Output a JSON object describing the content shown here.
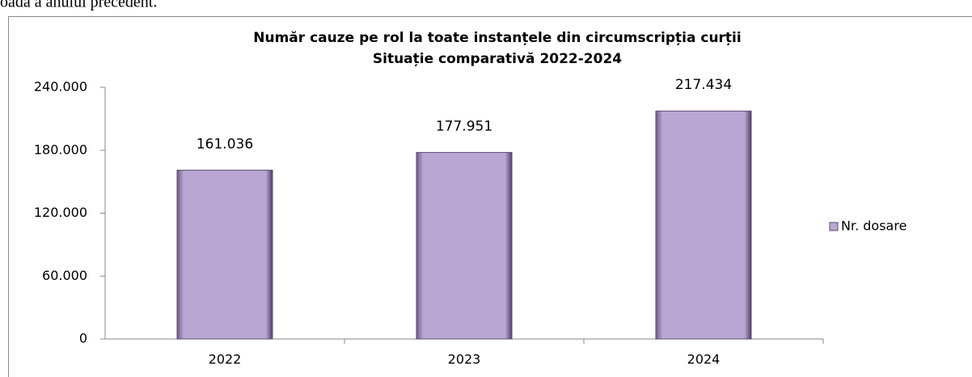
{
  "page_text": "oada a anului precedent.",
  "chart_data": {
    "type": "bar",
    "title": "Număr cauze pe rol la toate instanțele din circumscripția curții",
    "subtitle": "Situație comparativă 2022-2024",
    "categories": [
      "2022",
      "2023",
      "2024"
    ],
    "series": [
      {
        "name": "Nr. dosare",
        "color": "#b9a6d2",
        "values": [
          161036,
          177951,
          217434
        ],
        "value_labels": [
          "161.036",
          "177.951",
          "217.434"
        ]
      }
    ],
    "ylim": [
      0,
      240000
    ],
    "yticks": [
      0,
      {
        "value": 60000,
        "label": "60.000"
      },
      {
        "value": 120000,
        "label": "120.000"
      },
      {
        "value": 180000,
        "label": "180.000"
      },
      {
        "value": 240000,
        "label": "240.000"
      }
    ],
    "legend": "right"
  }
}
